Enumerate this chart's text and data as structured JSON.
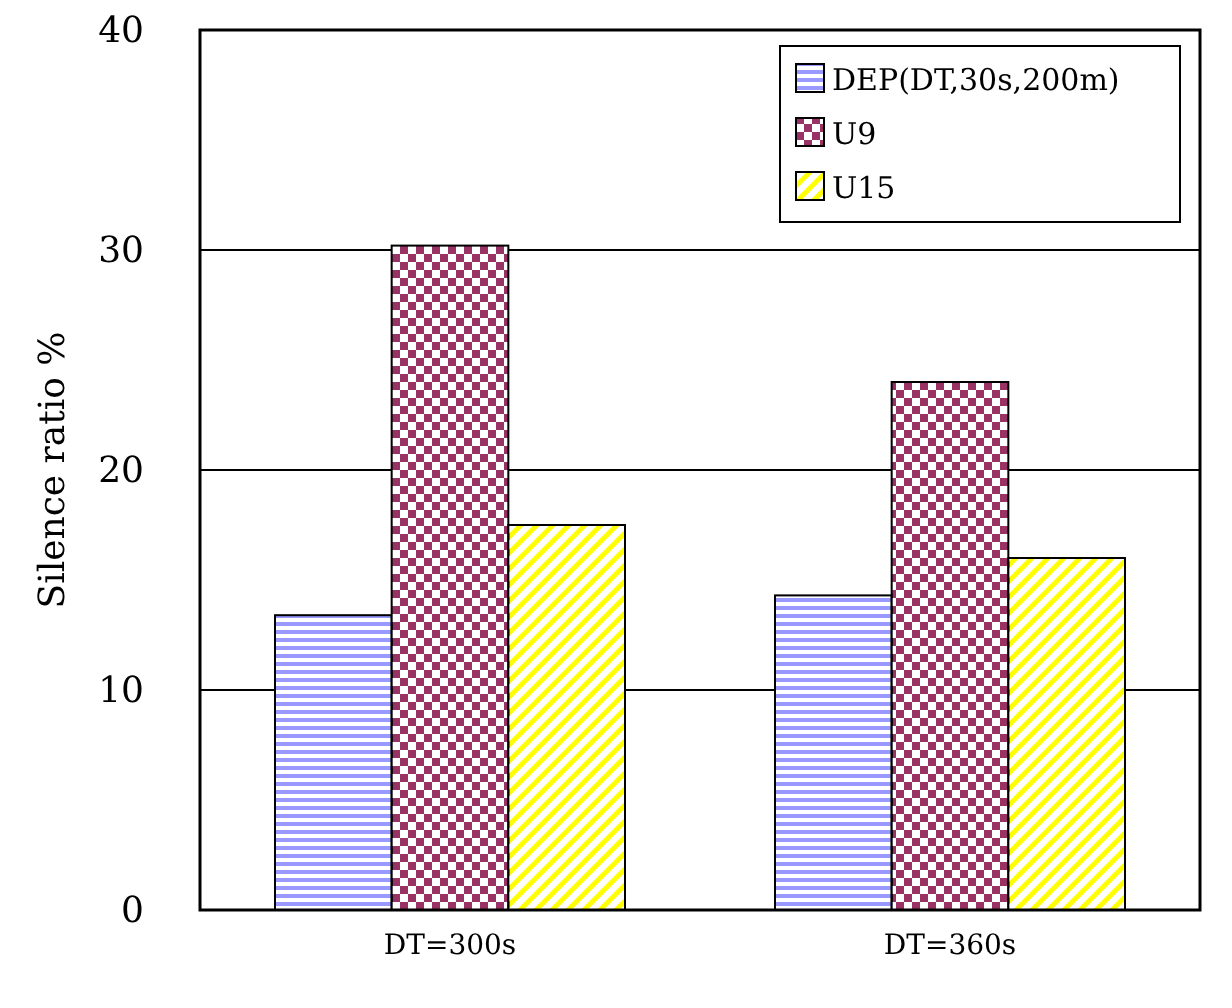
{
  "chart_data": {
    "type": "bar",
    "ylabel": "Silence ratio %",
    "categories": [
      "DT=300s",
      "DT=360s"
    ],
    "series": [
      {
        "name": "DEP(DT,30s,200m)",
        "color": "#9999ff",
        "values": [
          13.4,
          14.3
        ]
      },
      {
        "name": "U9",
        "color": "#993366",
        "values": [
          30.2,
          24.0
        ]
      },
      {
        "name": "U15",
        "color": "#ffff00",
        "values": [
          17.5,
          16.0
        ]
      }
    ],
    "ylim": [
      0,
      40
    ],
    "yticks": [
      0,
      10,
      20,
      30,
      40
    ],
    "grid": "y",
    "legend": "top right"
  }
}
